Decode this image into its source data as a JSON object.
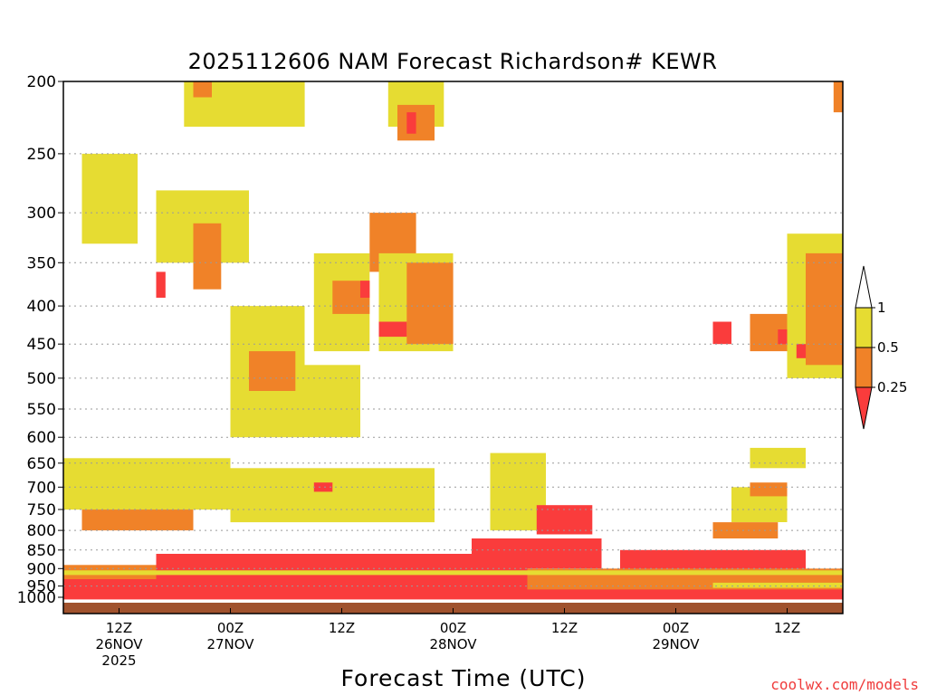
{
  "chart_data": {
    "type": "heatmap",
    "title": "2025112606 NAM Forecast Richardson# KEWR",
    "xlabel": "Forecast Time (UTC)",
    "ylabel": "",
    "credit": "coolwx.com/models",
    "y_axis": {
      "scale": "log",
      "inverted": true,
      "range": [
        200,
        1000
      ],
      "ticks": [
        "200",
        "250",
        "300",
        "350",
        "400",
        "450",
        "500",
        "550",
        "600",
        "650",
        "700",
        "750",
        "800",
        "850",
        "900",
        "950",
        "1000"
      ]
    },
    "x_axis": {
      "range_hours": [
        0,
        84
      ],
      "ticks": [
        {
          "hour": 6,
          "lines": [
            "12Z",
            "26NOV",
            "2025"
          ]
        },
        {
          "hour": 18,
          "lines": [
            "00Z",
            "27NOV"
          ]
        },
        {
          "hour": 30,
          "lines": [
            "12Z"
          ]
        },
        {
          "hour": 42,
          "lines": [
            "00Z",
            "28NOV"
          ]
        },
        {
          "hour": 54,
          "lines": [
            "12Z"
          ]
        },
        {
          "hour": 66,
          "lines": [
            "00Z",
            "29NOV"
          ]
        },
        {
          "hour": 78,
          "lines": [
            "12Z"
          ]
        }
      ]
    },
    "grid": true,
    "legend": {
      "position": "right",
      "labels": [
        "1",
        "0.5",
        "0.25"
      ],
      "bins": [
        {
          "range": "0.5-1",
          "color": "#e6dc32"
        },
        {
          "range": "0.25-0.5",
          "color": "#f08228"
        },
        {
          "range": "<0.25",
          "color": "#fa3c3c"
        }
      ]
    },
    "colors": {
      "low": "#fa3c3c",
      "mid": "#f08228",
      "high": "#e6dc32",
      "ground": "#a0522d"
    },
    "regions": [
      {
        "class": "low",
        "hours": [
          0,
          84
        ],
        "p": [
          930,
          990
        ]
      },
      {
        "class": "low",
        "hours": [
          10,
          50
        ],
        "p": [
          860,
          930
        ]
      },
      {
        "class": "low",
        "hours": [
          44,
          58
        ],
        "p": [
          820,
          900
        ]
      },
      {
        "class": "low",
        "hours": [
          60,
          80
        ],
        "p": [
          850,
          920
        ]
      },
      {
        "class": "mid",
        "hours": [
          0,
          10
        ],
        "p": [
          890,
          930
        ]
      },
      {
        "class": "mid",
        "hours": [
          50,
          84
        ],
        "p": [
          900,
          960
        ]
      },
      {
        "class": "high",
        "hours": [
          0,
          84
        ],
        "p": [
          905,
          918
        ]
      },
      {
        "class": "high",
        "hours": [
          70,
          84
        ],
        "p": [
          940,
          955
        ]
      },
      {
        "class": "low",
        "hours": [
          6,
          10
        ],
        "p": [
          720,
          780
        ]
      },
      {
        "class": "mid",
        "hours": [
          2,
          14
        ],
        "p": [
          700,
          800
        ]
      },
      {
        "class": "high",
        "hours": [
          0,
          18
        ],
        "p": [
          640,
          750
        ]
      },
      {
        "class": "mid",
        "hours": [
          25,
          34
        ],
        "p": [
          690,
          740
        ]
      },
      {
        "class": "high",
        "hours": [
          18,
          40
        ],
        "p": [
          660,
          780
        ]
      },
      {
        "class": "low",
        "hours": [
          27,
          29
        ],
        "p": [
          690,
          710
        ]
      },
      {
        "class": "high",
        "hours": [
          46,
          52
        ],
        "p": [
          630,
          800
        ]
      },
      {
        "class": "low",
        "hours": [
          51,
          57
        ],
        "p": [
          740,
          810
        ]
      },
      {
        "class": "high",
        "hours": [
          72,
          78
        ],
        "p": [
          700,
          780
        ]
      },
      {
        "class": "mid",
        "hours": [
          74,
          78
        ],
        "p": [
          690,
          720
        ]
      },
      {
        "class": "mid",
        "hours": [
          70,
          77
        ],
        "p": [
          780,
          820
        ]
      },
      {
        "class": "high",
        "hours": [
          74,
          80
        ],
        "p": [
          620,
          660
        ]
      },
      {
        "class": "high",
        "hours": [
          2,
          8
        ],
        "p": [
          250,
          330
        ]
      },
      {
        "class": "high",
        "hours": [
          10,
          20
        ],
        "p": [
          280,
          350
        ]
      },
      {
        "class": "mid",
        "hours": [
          14,
          17
        ],
        "p": [
          310,
          380
        ]
      },
      {
        "class": "low",
        "hours": [
          10,
          11
        ],
        "p": [
          360,
          390
        ]
      },
      {
        "class": "high",
        "hours": [
          18,
          26
        ],
        "p": [
          400,
          600
        ]
      },
      {
        "class": "mid",
        "hours": [
          20,
          25
        ],
        "p": [
          460,
          520
        ]
      },
      {
        "class": "high",
        "hours": [
          27,
          33
        ],
        "p": [
          340,
          460
        ]
      },
      {
        "class": "mid",
        "hours": [
          29,
          33
        ],
        "p": [
          370,
          410
        ]
      },
      {
        "class": "low",
        "hours": [
          32,
          33
        ],
        "p": [
          370,
          390
        ]
      },
      {
        "class": "mid",
        "hours": [
          33,
          38
        ],
        "p": [
          300,
          360
        ]
      },
      {
        "class": "high",
        "hours": [
          34,
          42
        ],
        "p": [
          340,
          460
        ]
      },
      {
        "class": "mid",
        "hours": [
          37,
          42
        ],
        "p": [
          350,
          450
        ]
      },
      {
        "class": "low",
        "hours": [
          34,
          37
        ],
        "p": [
          420,
          440
        ]
      },
      {
        "class": "high",
        "hours": [
          35,
          41
        ],
        "p": [
          200,
          230
        ]
      },
      {
        "class": "mid",
        "hours": [
          36,
          40
        ],
        "p": [
          215,
          240
        ]
      },
      {
        "class": "low",
        "hours": [
          37,
          38
        ],
        "p": [
          220,
          235
        ]
      },
      {
        "class": "high",
        "hours": [
          13,
          26
        ],
        "p": [
          200,
          230
        ]
      },
      {
        "class": "mid",
        "hours": [
          14,
          16
        ],
        "p": [
          200,
          210
        ]
      },
      {
        "class": "high",
        "hours": [
          26,
          32
        ],
        "p": [
          480,
          600
        ]
      },
      {
        "class": "low",
        "hours": [
          70,
          72
        ],
        "p": [
          420,
          450
        ]
      },
      {
        "class": "mid",
        "hours": [
          74,
          78
        ],
        "p": [
          410,
          460
        ]
      },
      {
        "class": "low",
        "hours": [
          77,
          78
        ],
        "p": [
          430,
          450
        ]
      },
      {
        "class": "high",
        "hours": [
          78,
          84
        ],
        "p": [
          320,
          500
        ]
      },
      {
        "class": "mid",
        "hours": [
          80,
          84
        ],
        "p": [
          340,
          480
        ]
      },
      {
        "class": "low",
        "hours": [
          79,
          80
        ],
        "p": [
          450,
          470
        ]
      },
      {
        "class": "mid",
        "hours": [
          83,
          84
        ],
        "p": [
          200,
          220
        ]
      }
    ]
  }
}
